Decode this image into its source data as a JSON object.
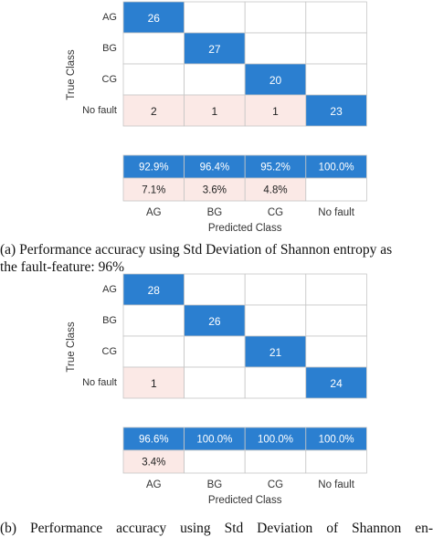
{
  "chart_data": [
    {
      "type": "heatmap",
      "panel": "a",
      "categories": [
        "AG",
        "BG",
        "CG",
        "No fault"
      ],
      "matrix": [
        [
          26,
          0,
          0,
          0
        ],
        [
          0,
          27,
          0,
          0
        ],
        [
          0,
          0,
          20,
          0
        ],
        [
          2,
          1,
          1,
          23
        ]
      ],
      "precision": [
        "92.9%",
        "96.4%",
        "95.2%",
        "100.0%"
      ],
      "fdr": [
        "7.1%",
        "3.6%",
        "4.8%",
        ""
      ],
      "xlabel": "Predicted Class",
      "ylabel": "True Class",
      "caption_line1": "(a) Performance accuracy using Std Deviation of Shannon entropy as",
      "caption_line2": "the fault-feature: 96%"
    },
    {
      "type": "heatmap",
      "panel": "b",
      "categories": [
        "AG",
        "BG",
        "CG",
        "No fault"
      ],
      "matrix": [
        [
          28,
          0,
          0,
          0
        ],
        [
          0,
          26,
          0,
          0
        ],
        [
          0,
          0,
          21,
          0
        ],
        [
          1,
          0,
          0,
          24
        ]
      ],
      "precision": [
        "96.6%",
        "100.0%",
        "100.0%",
        "100.0%"
      ],
      "fdr": [
        "3.4%",
        "",
        "",
        ""
      ],
      "xlabel": "Predicted Class",
      "ylabel": "True Class",
      "caption_line1": "(b) Performance accuracy using Std Deviation of Shannon en-"
    }
  ],
  "colors": {
    "correct_fill": "#2b7fd0",
    "correct_text": "#ffffff",
    "error_fill": "#fbe9e6",
    "error_text": "#222222",
    "grid": "#c6c6c6",
    "label_text": "#333333"
  }
}
